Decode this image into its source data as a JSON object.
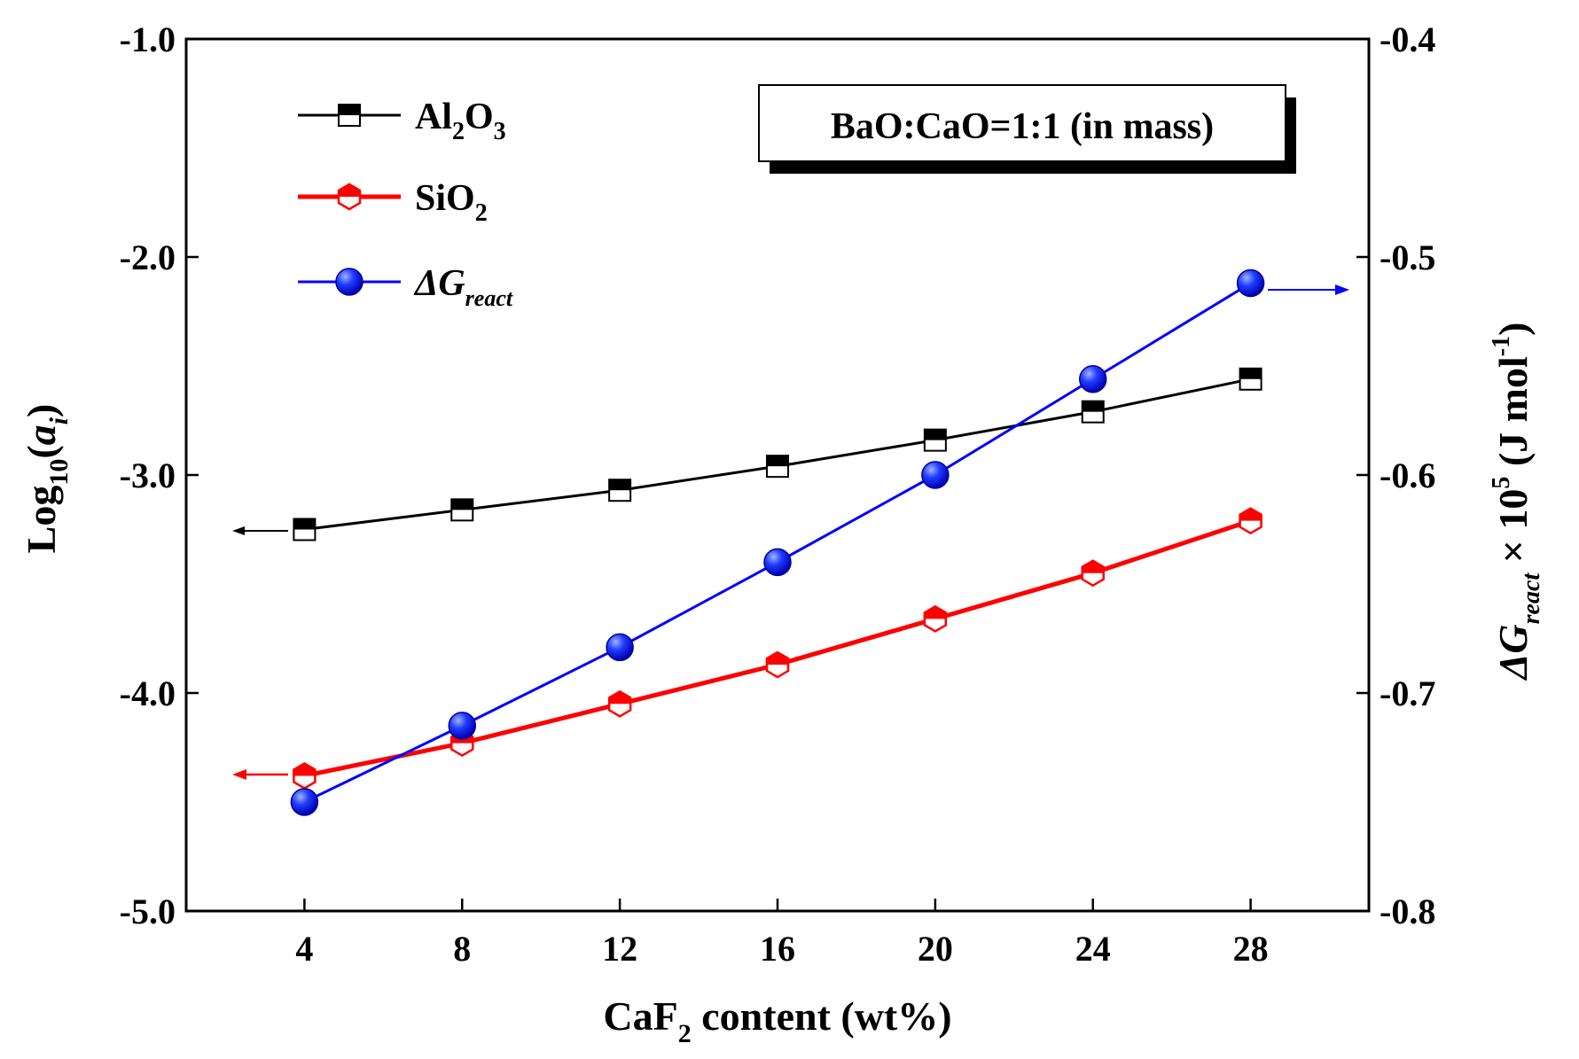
{
  "chart_data": {
    "type": "line",
    "title": "",
    "annotation": "BaO:CaO=1:1 (in mass)",
    "x": [
      4,
      8,
      12,
      16,
      20,
      24,
      28
    ],
    "xlim": [
      1,
      31
    ],
    "x_ticks": [
      "4",
      "8",
      "12",
      "16",
      "20",
      "24",
      "28"
    ],
    "xlabel": {
      "main": "CaF",
      "sub": "2",
      "rest": " content (wt%)"
    },
    "ylim_left": [
      -5.0,
      -1.0
    ],
    "y_ticks_left": [
      "-1.0",
      "-2.0",
      "-3.0",
      "-4.0",
      "-5.0"
    ],
    "ylabel_left": {
      "main": "Log",
      "sub": "10",
      "paren_open": "(",
      "var": "a",
      "var_sub": "i",
      "paren_close": ")"
    },
    "ylim_right": [
      -0.8,
      -0.4
    ],
    "y_ticks_right": [
      "-0.4",
      "-0.5",
      "-0.6",
      "-0.7",
      "-0.8"
    ],
    "ylabel_right": {
      "delta": "ΔG",
      "sub": "react",
      "times": " × 10",
      "sup": "5",
      "unit_open": " (J mol",
      "unit_sup": "-1",
      "unit_close": ")"
    },
    "series": [
      {
        "name": "Al2O3",
        "label_parts": [
          "Al",
          "2",
          "O",
          "3"
        ],
        "axis": "left",
        "color": "#000000",
        "marker": "half-square",
        "values": [
          -3.25,
          -3.16,
          -3.07,
          -2.96,
          -2.84,
          -2.71,
          -2.56
        ]
      },
      {
        "name": "SiO2",
        "label_parts": [
          "SiO",
          "2"
        ],
        "axis": "left",
        "color": "#ff0000",
        "marker": "half-hexagon",
        "values": [
          -4.38,
          -4.23,
          -4.05,
          -3.87,
          -3.66,
          -3.45,
          -3.21
        ]
      },
      {
        "name": "ΔGreact",
        "label_parts": [
          "ΔG",
          "react"
        ],
        "axis": "right",
        "color": "#0000ff",
        "marker": "circle",
        "values": [
          -0.75,
          -0.715,
          -0.679,
          -0.64,
          -0.6,
          -0.556,
          -0.512
        ]
      }
    ]
  }
}
